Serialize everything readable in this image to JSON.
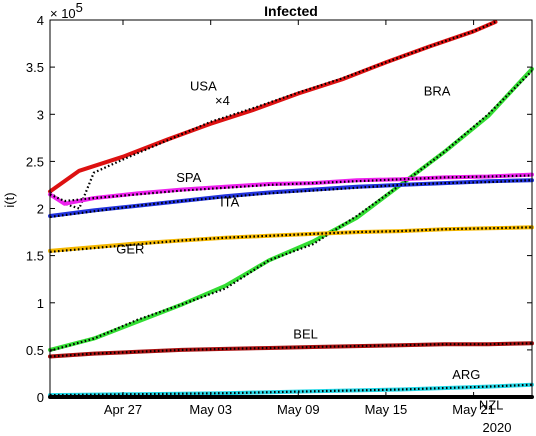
{
  "chart_data": {
    "type": "line",
    "title": "Infected",
    "ylabel": "i(t)",
    "xlabel": "",
    "y_multiplier": "× 10",
    "y_exponent": "5",
    "x_year_label": "2020",
    "ylim": [
      0,
      4
    ],
    "xlim_days": [
      0,
      33
    ],
    "x_ticks": [
      {
        "day": 5,
        "label": "Apr 27"
      },
      {
        "day": 11,
        "label": "May 03"
      },
      {
        "day": 17,
        "label": "May 09"
      },
      {
        "day": 23,
        "label": "May 15"
      },
      {
        "day": 29,
        "label": "May 21"
      }
    ],
    "y_ticks": [
      {
        "value": 0,
        "label": "0"
      },
      {
        "value": 0.5,
        "label": "0.5"
      },
      {
        "value": 1,
        "label": "1"
      },
      {
        "value": 1.5,
        "label": "1.5"
      },
      {
        "value": 2,
        "label": "2"
      },
      {
        "value": 2.5,
        "label": "2.5"
      },
      {
        "value": 3,
        "label": "3"
      },
      {
        "value": 3.5,
        "label": "3.5"
      },
      {
        "value": 4,
        "label": "4"
      }
    ],
    "grid": false,
    "series": [
      {
        "name": "USA",
        "annotation": "×4",
        "color": "#dd1111",
        "label_at": [
          10.5,
          3.25
        ],
        "annotation_at": [
          11.8,
          3.1
        ],
        "points": [
          [
            0,
            2.18
          ],
          [
            2,
            2.4
          ],
          [
            5,
            2.55
          ],
          [
            8,
            2.73
          ],
          [
            11,
            2.9
          ],
          [
            14,
            3.05
          ],
          [
            17,
            3.22
          ],
          [
            20,
            3.37
          ],
          [
            23,
            3.55
          ],
          [
            26,
            3.72
          ],
          [
            29,
            3.88
          ],
          [
            30.5,
            3.98
          ]
        ],
        "fit": [
          [
            0,
            2.17
          ],
          [
            1,
            2.05
          ],
          [
            2,
            2.0
          ],
          [
            3,
            2.38
          ],
          [
            5,
            2.52
          ],
          [
            8,
            2.72
          ],
          [
            11,
            2.92
          ],
          [
            14,
            3.07
          ],
          [
            17,
            3.23
          ],
          [
            20,
            3.38
          ],
          [
            23,
            3.55
          ],
          [
            26,
            3.72
          ],
          [
            29,
            3.88
          ],
          [
            30.5,
            3.98
          ]
        ]
      },
      {
        "name": "BRA",
        "color": "#33dd33",
        "label_at": [
          26.5,
          3.2
        ],
        "points": [
          [
            0,
            0.5
          ],
          [
            3,
            0.62
          ],
          [
            6,
            0.8
          ],
          [
            9,
            0.98
          ],
          [
            12,
            1.18
          ],
          [
            15,
            1.45
          ],
          [
            18,
            1.65
          ],
          [
            21,
            1.9
          ],
          [
            24,
            2.25
          ],
          [
            27,
            2.6
          ],
          [
            30,
            2.98
          ],
          [
            33,
            3.48
          ]
        ],
        "fit": [
          [
            0,
            0.49
          ],
          [
            3,
            0.62
          ],
          [
            6,
            0.82
          ],
          [
            9,
            0.98
          ],
          [
            12,
            1.15
          ],
          [
            15,
            1.45
          ],
          [
            18,
            1.62
          ],
          [
            21,
            1.92
          ],
          [
            24,
            2.25
          ],
          [
            27,
            2.6
          ],
          [
            30,
            3.0
          ],
          [
            33,
            3.46
          ]
        ]
      },
      {
        "name": "SPA",
        "color": "#ee22ee",
        "label_at": [
          9.5,
          2.28
        ],
        "points": [
          [
            0,
            2.15
          ],
          [
            1,
            2.05
          ],
          [
            3,
            2.11
          ],
          [
            6,
            2.16
          ],
          [
            9,
            2.2
          ],
          [
            12,
            2.23
          ],
          [
            15,
            2.26
          ],
          [
            18,
            2.27
          ],
          [
            21,
            2.3
          ],
          [
            24,
            2.31
          ],
          [
            27,
            2.33
          ],
          [
            30,
            2.34
          ],
          [
            33,
            2.36
          ]
        ],
        "fit": [
          [
            0,
            2.15
          ],
          [
            1,
            2.08
          ],
          [
            3,
            2.11
          ],
          [
            6,
            2.15
          ],
          [
            9,
            2.19
          ],
          [
            12,
            2.22
          ],
          [
            15,
            2.25
          ],
          [
            18,
            2.27
          ],
          [
            21,
            2.29
          ],
          [
            24,
            2.31
          ],
          [
            27,
            2.33
          ],
          [
            30,
            2.34
          ],
          [
            33,
            2.35
          ]
        ]
      },
      {
        "name": "ITA",
        "color": "#2233dd",
        "label_at": [
          12.3,
          2.02
        ],
        "points": [
          [
            0,
            1.92
          ],
          [
            3,
            1.98
          ],
          [
            6,
            2.03
          ],
          [
            9,
            2.08
          ],
          [
            12,
            2.13
          ],
          [
            15,
            2.17
          ],
          [
            18,
            2.2
          ],
          [
            21,
            2.23
          ],
          [
            24,
            2.25
          ],
          [
            27,
            2.27
          ],
          [
            30,
            2.29
          ],
          [
            33,
            2.3
          ]
        ],
        "fit": [
          [
            0,
            1.91
          ],
          [
            3,
            1.97
          ],
          [
            6,
            2.03
          ],
          [
            9,
            2.08
          ],
          [
            12,
            2.12
          ],
          [
            15,
            2.16
          ],
          [
            18,
            2.19
          ],
          [
            21,
            2.22
          ],
          [
            24,
            2.25
          ],
          [
            27,
            2.27
          ],
          [
            30,
            2.28
          ],
          [
            33,
            2.3
          ]
        ]
      },
      {
        "name": "GER",
        "color": "#f5b800",
        "label_at": [
          5.5,
          1.52
        ],
        "points": [
          [
            0,
            1.55
          ],
          [
            3,
            1.59
          ],
          [
            6,
            1.63
          ],
          [
            9,
            1.66
          ],
          [
            12,
            1.69
          ],
          [
            15,
            1.71
          ],
          [
            18,
            1.73
          ],
          [
            21,
            1.75
          ],
          [
            24,
            1.76
          ],
          [
            27,
            1.78
          ],
          [
            30,
            1.79
          ],
          [
            33,
            1.8
          ]
        ],
        "fit": [
          [
            0,
            1.54
          ],
          [
            3,
            1.58
          ],
          [
            6,
            1.62
          ],
          [
            9,
            1.66
          ],
          [
            12,
            1.69
          ],
          [
            15,
            1.71
          ],
          [
            18,
            1.73
          ],
          [
            21,
            1.75
          ],
          [
            24,
            1.76
          ],
          [
            27,
            1.78
          ],
          [
            30,
            1.79
          ],
          [
            33,
            1.8
          ]
        ]
      },
      {
        "name": "BEL",
        "color": "#aa1111",
        "label_at": [
          17.5,
          0.62
        ],
        "points": [
          [
            0,
            0.43
          ],
          [
            3,
            0.46
          ],
          [
            6,
            0.48
          ],
          [
            9,
            0.5
          ],
          [
            12,
            0.51
          ],
          [
            15,
            0.52
          ],
          [
            18,
            0.53
          ],
          [
            21,
            0.54
          ],
          [
            24,
            0.55
          ],
          [
            27,
            0.56
          ],
          [
            30,
            0.56
          ],
          [
            33,
            0.57
          ]
        ],
        "fit": [
          [
            0,
            0.43
          ],
          [
            3,
            0.46
          ],
          [
            6,
            0.48
          ],
          [
            9,
            0.5
          ],
          [
            12,
            0.51
          ],
          [
            15,
            0.52
          ],
          [
            18,
            0.53
          ],
          [
            21,
            0.54
          ],
          [
            24,
            0.55
          ],
          [
            27,
            0.56
          ],
          [
            30,
            0.56
          ],
          [
            33,
            0.57
          ]
        ]
      },
      {
        "name": "ARG",
        "color": "#22d8e8",
        "label_at": [
          28.5,
          0.19
        ],
        "points": [
          [
            0,
            0.02
          ],
          [
            6,
            0.03
          ],
          [
            12,
            0.04
          ],
          [
            18,
            0.06
          ],
          [
            24,
            0.08
          ],
          [
            30,
            0.11
          ],
          [
            33,
            0.13
          ]
        ],
        "fit": [
          [
            0,
            0.02
          ],
          [
            6,
            0.03
          ],
          [
            12,
            0.04
          ],
          [
            18,
            0.06
          ],
          [
            24,
            0.08
          ],
          [
            30,
            0.11
          ],
          [
            33,
            0.13
          ]
        ]
      },
      {
        "name": "NZL",
        "color": "#000000",
        "label_at": [
          30.2,
          -0.13
        ],
        "points": [
          [
            0,
            0.0
          ],
          [
            33,
            0.0
          ]
        ],
        "fit": [
          [
            0,
            0.0
          ],
          [
            33,
            0.0
          ]
        ]
      }
    ]
  }
}
